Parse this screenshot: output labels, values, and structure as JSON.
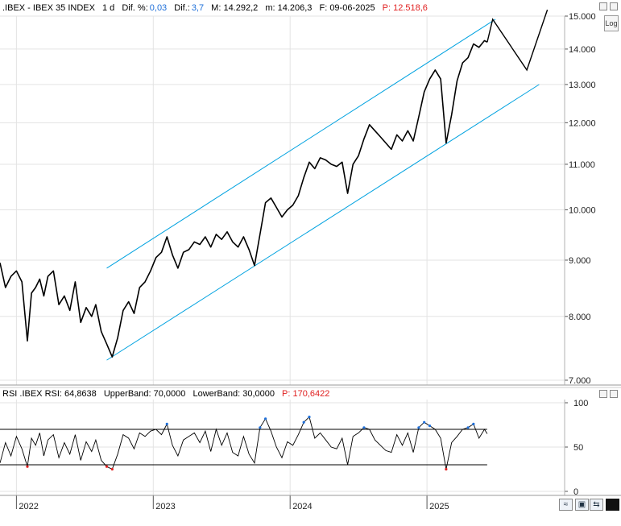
{
  "header_main": {
    "symbol": ".IBEX - IBEX 35 INDEX",
    "interval": "1 d",
    "dif_pct_label": "Dif. %:",
    "dif_pct_value": "0,03",
    "dif_label": "Dif.:",
    "dif_value": "3,7",
    "max_text": "M: 14.292,2",
    "min_text": "m: 14.206,3",
    "date_text": "F: 09-06-2025",
    "proj_text": "P: 12.518,6"
  },
  "header_rsi": {
    "label": "RSI .IBEX RSI: 64,8638",
    "upper": "UpperBand: 70,0000",
    "lower": "LowerBand: 30,0000",
    "proj": "P: 170,6422"
  },
  "buttons": {
    "log_label": "Log"
  },
  "colors": {
    "price": "#000000",
    "channel": "#00a2e0",
    "rsi_line": "#000000",
    "rsi_over": "#1e6fd9",
    "rsi_under": "#e02020",
    "band": "#000000",
    "grid": "#e3e3e3"
  },
  "chart_data": [
    {
      "type": "line",
      "title": ".IBEX - IBEX 35 INDEX",
      "scale": "log",
      "ylim": [
        7000,
        15000
      ],
      "y_ticks": [
        "7.000",
        "8.000",
        "9.000",
        "10.000",
        "11.000",
        "12.000",
        "13.000",
        "14.000",
        "15.000"
      ],
      "y_tick_values": [
        7000,
        8000,
        9000,
        10000,
        11000,
        12000,
        13000,
        14000,
        15000
      ],
      "x_ticks": [
        "2022",
        "2023",
        "2024",
        "2025"
      ],
      "x_tick_values": [
        2022.0,
        2023.0,
        2024.0,
        2025.0
      ],
      "xlim": [
        2021.88,
        2026.0
      ],
      "series": [
        {
          "values_x": [
            2021.88,
            2021.92,
            2021.96,
            2022.0,
            2022.04,
            2022.08,
            2022.11,
            2022.14,
            2022.17,
            2022.2,
            2022.23,
            2022.27,
            2022.31,
            2022.35,
            2022.39,
            2022.43,
            2022.47,
            2022.51,
            2022.55,
            2022.58,
            2022.62,
            2022.66,
            2022.7,
            2022.74,
            2022.78,
            2022.82,
            2022.86,
            2022.9,
            2022.94,
            2022.98,
            2023.02,
            2023.06,
            2023.1,
            2023.14,
            2023.18,
            2023.22,
            2023.26,
            2023.3,
            2023.34,
            2023.38,
            2023.42,
            2023.46,
            2023.5,
            2023.54,
            2023.58,
            2023.62,
            2023.66,
            2023.7,
            2023.74,
            2023.78,
            2023.82,
            2023.86,
            2023.9,
            2023.94,
            2023.98,
            2024.02,
            2024.06,
            2024.1,
            2024.14,
            2024.18,
            2024.22,
            2024.26,
            2024.3,
            2024.34,
            2024.38,
            2024.42,
            2024.46,
            2024.5,
            2024.54,
            2024.58,
            2024.62,
            2024.66,
            2024.7,
            2024.74,
            2024.78,
            2024.82,
            2024.86,
            2024.9,
            2024.94,
            2024.98,
            2025.02,
            2025.06,
            2025.1,
            2025.14,
            2025.18,
            2025.22,
            2025.26,
            2025.3,
            2025.34,
            2025.38,
            2025.42,
            2025.44
          ],
          "values_y": [
            8950,
            8500,
            8700,
            8800,
            8600,
            7600,
            8400,
            8500,
            8650,
            8350,
            8700,
            8800,
            8200,
            8350,
            8100,
            8600,
            7900,
            8150,
            8000,
            8200,
            7750,
            7550,
            7350,
            7650,
            8100,
            8250,
            8050,
            8500,
            8600,
            8800,
            9050,
            9150,
            9450,
            9100,
            8850,
            9150,
            9200,
            9350,
            9300,
            9450,
            9250,
            9500,
            9400,
            9550,
            9350,
            9250,
            9450,
            9200,
            8900,
            9500,
            10150,
            10250,
            10050,
            9850,
            10000,
            10100,
            10300,
            10700,
            11050,
            10900,
            11150,
            11100,
            11000,
            10950,
            11050,
            10350,
            11000,
            11200,
            11600,
            11950,
            11800,
            11650,
            11500,
            11350,
            11700,
            11550,
            11800,
            11550,
            12150,
            12800,
            13150,
            13400,
            13150,
            11500,
            12200,
            13100,
            13600,
            13750,
            14150,
            14050,
            14250,
            14206
          ]
        }
      ],
      "projection": {
        "values_x": [
          2025.48,
          2025.73,
          2025.88
        ],
        "values_y": [
          14900,
          13400,
          15200
        ]
      },
      "channel": {
        "upper": {
          "x": [
            2022.66,
            2025.5
          ],
          "y": [
            8850,
            14900
          ]
        },
        "lower": {
          "x": [
            2022.66,
            2025.82
          ],
          "y": [
            7300,
            13000
          ]
        }
      }
    },
    {
      "type": "line",
      "title": "RSI .IBEX RSI: 64,8638",
      "ylim": [
        0,
        100
      ],
      "y_ticks": [
        "0",
        "50",
        "100"
      ],
      "y_tick_values": [
        0,
        50,
        100
      ],
      "upper_band": 70,
      "lower_band": 30,
      "xlim": [
        2021.88,
        2026.0
      ],
      "series": [
        {
          "values_x": [
            2021.88,
            2021.92,
            2021.96,
            2022.0,
            2022.04,
            2022.08,
            2022.11,
            2022.14,
            2022.17,
            2022.2,
            2022.23,
            2022.27,
            2022.31,
            2022.35,
            2022.39,
            2022.43,
            2022.47,
            2022.51,
            2022.55,
            2022.58,
            2022.62,
            2022.66,
            2022.7,
            2022.74,
            2022.78,
            2022.82,
            2022.86,
            2022.9,
            2022.94,
            2022.98,
            2023.02,
            2023.06,
            2023.1,
            2023.14,
            2023.18,
            2023.22,
            2023.26,
            2023.3,
            2023.34,
            2023.38,
            2023.42,
            2023.46,
            2023.5,
            2023.54,
            2023.58,
            2023.62,
            2023.66,
            2023.7,
            2023.74,
            2023.78,
            2023.82,
            2023.86,
            2023.9,
            2023.94,
            2023.98,
            2024.02,
            2024.06,
            2024.1,
            2024.14,
            2024.18,
            2024.22,
            2024.26,
            2024.3,
            2024.34,
            2024.38,
            2024.42,
            2024.46,
            2024.5,
            2024.54,
            2024.58,
            2024.62,
            2024.66,
            2024.7,
            2024.74,
            2024.78,
            2024.82,
            2024.86,
            2024.9,
            2024.94,
            2024.98,
            2025.02,
            2025.06,
            2025.1,
            2025.14,
            2025.18,
            2025.22,
            2025.26,
            2025.3,
            2025.34,
            2025.38,
            2025.42,
            2025.44
          ],
          "values_y": [
            32,
            55,
            40,
            62,
            48,
            28,
            60,
            52,
            66,
            40,
            58,
            64,
            38,
            55,
            42,
            64,
            35,
            56,
            45,
            58,
            35,
            28,
            25,
            42,
            64,
            60,
            48,
            66,
            62,
            68,
            70,
            64,
            76,
            52,
            40,
            58,
            62,
            66,
            55,
            68,
            45,
            70,
            52,
            66,
            44,
            40,
            62,
            42,
            32,
            72,
            82,
            68,
            50,
            38,
            56,
            52,
            64,
            78,
            84,
            60,
            66,
            58,
            50,
            48,
            60,
            30,
            62,
            66,
            72,
            70,
            58,
            52,
            46,
            44,
            64,
            52,
            66,
            44,
            72,
            78,
            74,
            70,
            60,
            25,
            55,
            62,
            70,
            72,
            76,
            60,
            70,
            65
          ]
        }
      ]
    }
  ]
}
